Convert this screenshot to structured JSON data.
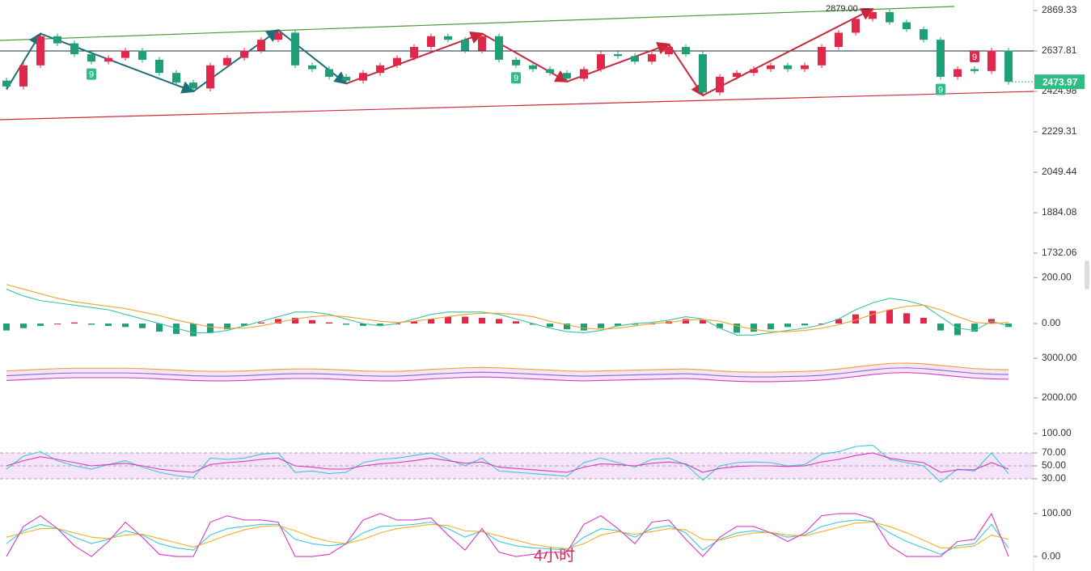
{
  "chart_data": [
    {
      "type": "candlestick",
      "scale": "log",
      "ylim": [
        1669,
        2933
      ],
      "yticks": [
        2869.33,
        2637.81,
        2424.98,
        2229.31,
        2049.44,
        1884.08,
        1732.06
      ],
      "open": [
        2480,
        2450,
        2560,
        2720,
        2680,
        2620,
        2580,
        2600,
        2640,
        2590,
        2520,
        2470,
        2440,
        2560,
        2600,
        2640,
        2700,
        2740,
        2560,
        2540,
        2500,
        2480,
        2520,
        2560,
        2600,
        2660,
        2720,
        2700,
        2640,
        2720,
        2590,
        2560,
        2540,
        2520,
        2490,
        2540,
        2620,
        2610,
        2580,
        2620,
        2660,
        2620,
        2420,
        2500,
        2520,
        2540,
        2560,
        2540,
        2560,
        2660,
        2740,
        2820,
        2860,
        2800,
        2760,
        2700,
        2500,
        2540,
        2530,
        2640
      ],
      "high": [
        2495,
        2575,
        2735,
        2735,
        2695,
        2635,
        2615,
        2655,
        2655,
        2605,
        2535,
        2485,
        2575,
        2615,
        2655,
        2715,
        2755,
        2755,
        2575,
        2555,
        2515,
        2535,
        2575,
        2615,
        2675,
        2735,
        2735,
        2715,
        2735,
        2735,
        2605,
        2575,
        2555,
        2535,
        2555,
        2635,
        2635,
        2625,
        2635,
        2675,
        2675,
        2635,
        2515,
        2535,
        2555,
        2575,
        2575,
        2575,
        2675,
        2755,
        2835,
        2879,
        2875,
        2815,
        2775,
        2715,
        2555,
        2555,
        2655,
        2655
      ],
      "low": [
        2435,
        2435,
        2545,
        2665,
        2605,
        2565,
        2565,
        2585,
        2575,
        2505,
        2455,
        2425,
        2425,
        2545,
        2585,
        2625,
        2685,
        2545,
        2525,
        2485,
        2465,
        2465,
        2505,
        2545,
        2585,
        2645,
        2685,
        2625,
        2625,
        2575,
        2545,
        2525,
        2505,
        2475,
        2475,
        2525,
        2595,
        2565,
        2565,
        2605,
        2605,
        2405,
        2405,
        2485,
        2505,
        2525,
        2525,
        2525,
        2545,
        2645,
        2725,
        2805,
        2785,
        2745,
        2685,
        2485,
        2485,
        2515,
        2515,
        2459
      ],
      "close": [
        2450,
        2560,
        2720,
        2680,
        2620,
        2580,
        2600,
        2640,
        2590,
        2520,
        2470,
        2440,
        2560,
        2600,
        2640,
        2700,
        2740,
        2560,
        2540,
        2500,
        2480,
        2520,
        2560,
        2600,
        2660,
        2720,
        2700,
        2640,
        2720,
        2590,
        2560,
        2540,
        2520,
        2490,
        2540,
        2620,
        2610,
        2580,
        2620,
        2660,
        2620,
        2420,
        2500,
        2520,
        2540,
        2560,
        2540,
        2560,
        2660,
        2740,
        2820,
        2860,
        2800,
        2760,
        2700,
        2500,
        2540,
        2530,
        2640,
        2473.97
      ],
      "up_color": "#e0294a",
      "down_color": "#1f9e78",
      "level_line": 2637.81,
      "high_label": "2879.00",
      "td_labels": [
        "9",
        "9",
        "9",
        "9"
      ],
      "period_label": "4小时"
    },
    {
      "type": "macd",
      "ylim": [
        -100,
        250
      ],
      "yticks": [
        {
          "value": 200,
          "label": "200.00"
        },
        {
          "value": 0,
          "label": "0.00"
        }
      ],
      "up_color": "#e0294a",
      "down_color": "#1f9e78",
      "histogram": [
        -30,
        -20,
        -10,
        0,
        5,
        -5,
        -10,
        -15,
        -20,
        -35,
        -45,
        -55,
        -40,
        -25,
        -10,
        5,
        20,
        25,
        15,
        5,
        -5,
        -10,
        -8,
        0,
        10,
        20,
        30,
        30,
        25,
        20,
        10,
        -5,
        -15,
        -25,
        -30,
        -20,
        -10,
        -5,
        0,
        10,
        20,
        15,
        -20,
        -40,
        -35,
        -25,
        -15,
        -8,
        0,
        20,
        40,
        55,
        60,
        45,
        25,
        -30,
        -50,
        -35,
        20,
        -15
      ],
      "series": [
        {
          "color": "#3cc39a",
          "values": [
            150,
            120,
            100,
            90,
            80,
            70,
            60,
            40,
            20,
            0,
            -20,
            -40,
            -40,
            -30,
            -10,
            10,
            30,
            50,
            50,
            40,
            20,
            0,
            -10,
            0,
            20,
            40,
            50,
            50,
            50,
            40,
            20,
            0,
            -20,
            -35,
            -40,
            -30,
            -10,
            0,
            5,
            15,
            30,
            20,
            -20,
            -50,
            -50,
            -40,
            -30,
            -20,
            -5,
            20,
            60,
            90,
            110,
            100,
            80,
            30,
            -20,
            -30,
            10,
            -10
          ]
        },
        {
          "color": "#f0a030",
          "values": [
            170,
            150,
            130,
            110,
            95,
            85,
            75,
            65,
            50,
            35,
            15,
            0,
            -15,
            -20,
            -20,
            -10,
            5,
            20,
            30,
            35,
            30,
            20,
            10,
            5,
            10,
            20,
            30,
            40,
            45,
            45,
            40,
            30,
            10,
            -5,
            -20,
            -25,
            -20,
            -10,
            0,
            5,
            15,
            18,
            10,
            -10,
            -25,
            -35,
            -35,
            -30,
            -20,
            -5,
            15,
            40,
            60,
            75,
            80,
            60,
            30,
            5,
            0,
            5
          ]
        }
      ]
    },
    {
      "type": "bands",
      "ylim": [
        1900,
        3200
      ],
      "yticks": [
        {
          "value": 3000,
          "label": "3000.00"
        },
        {
          "value": 2000,
          "label": "2000.00"
        }
      ],
      "fill": "#f3dcf7",
      "series": [
        {
          "color": "#f0a030",
          "values": [
            2680,
            2700,
            2720,
            2740,
            2750,
            2750,
            2750,
            2750,
            2740,
            2720,
            2700,
            2680,
            2670,
            2670,
            2680,
            2700,
            2720,
            2730,
            2730,
            2720,
            2700,
            2680,
            2670,
            2670,
            2690,
            2720,
            2740,
            2760,
            2770,
            2760,
            2740,
            2720,
            2700,
            2680,
            2670,
            2680,
            2690,
            2700,
            2710,
            2720,
            2730,
            2710,
            2680,
            2660,
            2650,
            2650,
            2660,
            2670,
            2690,
            2730,
            2780,
            2830,
            2870,
            2880,
            2860,
            2820,
            2780,
            2740,
            2720,
            2710
          ]
        },
        {
          "color": "#8a6cc8",
          "values": [
            2560,
            2580,
            2600,
            2620,
            2630,
            2630,
            2630,
            2630,
            2620,
            2600,
            2580,
            2560,
            2550,
            2550,
            2560,
            2580,
            2600,
            2610,
            2610,
            2600,
            2580,
            2560,
            2550,
            2550,
            2570,
            2600,
            2620,
            2640,
            2650,
            2640,
            2620,
            2600,
            2580,
            2560,
            2550,
            2560,
            2570,
            2580,
            2590,
            2600,
            2610,
            2590,
            2560,
            2540,
            2530,
            2530,
            2540,
            2550,
            2570,
            2610,
            2660,
            2710,
            2750,
            2760,
            2740,
            2700,
            2660,
            2620,
            2600,
            2590
          ]
        },
        {
          "color": "#d63cc0",
          "values": [
            2440,
            2460,
            2480,
            2500,
            2510,
            2510,
            2510,
            2510,
            2500,
            2480,
            2460,
            2440,
            2430,
            2430,
            2440,
            2460,
            2480,
            2490,
            2490,
            2480,
            2460,
            2440,
            2430,
            2430,
            2450,
            2480,
            2500,
            2520,
            2530,
            2520,
            2500,
            2480,
            2460,
            2440,
            2430,
            2440,
            2450,
            2460,
            2470,
            2480,
            2490,
            2470,
            2440,
            2420,
            2410,
            2410,
            2420,
            2430,
            2450,
            2490,
            2540,
            2590,
            2630,
            2640,
            2620,
            2580,
            2540,
            2500,
            2480,
            2470
          ]
        }
      ]
    },
    {
      "type": "line",
      "ylim": [
        0,
        100
      ],
      "band_fill": "#f3dcf7",
      "yticks": [
        {
          "value": 100,
          "label": "100.00"
        },
        {
          "value": 70,
          "label": "70.00"
        },
        {
          "value": 50,
          "label": "50.00"
        },
        {
          "value": 30,
          "label": "30.00"
        }
      ],
      "series": [
        {
          "color": "#3cc8d8",
          "values": [
            45,
            65,
            72,
            58,
            50,
            45,
            52,
            58,
            48,
            40,
            35,
            32,
            62,
            60,
            62,
            68,
            70,
            40,
            42,
            38,
            40,
            55,
            60,
            62,
            66,
            70,
            60,
            50,
            62,
            42,
            40,
            38,
            36,
            34,
            55,
            62,
            55,
            48,
            60,
            62,
            52,
            28,
            50,
            55,
            56,
            55,
            50,
            52,
            68,
            72,
            80,
            82,
            60,
            55,
            50,
            25,
            45,
            42,
            70,
            38
          ]
        },
        {
          "color": "#d63cc0",
          "values": [
            50,
            58,
            64,
            60,
            55,
            50,
            52,
            54,
            50,
            45,
            42,
            40,
            52,
            55,
            57,
            60,
            62,
            50,
            48,
            45,
            45,
            50,
            53,
            55,
            58,
            62,
            58,
            54,
            56,
            48,
            46,
            44,
            42,
            40,
            48,
            53,
            52,
            50,
            54,
            56,
            53,
            40,
            46,
            49,
            50,
            50,
            49,
            50,
            56,
            60,
            66,
            70,
            62,
            58,
            55,
            40,
            44,
            44,
            55,
            45
          ]
        }
      ]
    },
    {
      "type": "line",
      "ylim": [
        -30,
        120
      ],
      "yticks": [
        {
          "value": 100,
          "label": "100.00"
        },
        {
          "value": 0,
          "label": "0.00"
        }
      ],
      "series": [
        {
          "color": "#3cc8d8",
          "values": [
            30,
            60,
            75,
            65,
            45,
            30,
            40,
            60,
            50,
            30,
            20,
            15,
            50,
            65,
            70,
            75,
            75,
            40,
            30,
            25,
            30,
            55,
            70,
            72,
            75,
            80,
            65,
            45,
            60,
            35,
            25,
            20,
            18,
            15,
            45,
            65,
            60,
            45,
            65,
            72,
            55,
            15,
            40,
            55,
            60,
            55,
            45,
            50,
            70,
            80,
            85,
            82,
            55,
            35,
            20,
            5,
            25,
            30,
            75,
            20
          ]
        },
        {
          "color": "#f0b020",
          "values": [
            45,
            55,
            65,
            65,
            55,
            45,
            42,
            50,
            52,
            42,
            32,
            22,
            35,
            50,
            62,
            70,
            72,
            60,
            45,
            35,
            30,
            40,
            55,
            65,
            70,
            75,
            72,
            60,
            58,
            48,
            38,
            28,
            22,
            18,
            30,
            50,
            58,
            52,
            58,
            65,
            62,
            40,
            38,
            48,
            55,
            56,
            50,
            48,
            58,
            68,
            78,
            80,
            70,
            55,
            38,
            20,
            20,
            25,
            50,
            40
          ]
        },
        {
          "color": "#d63cc0",
          "values": [
            0,
            70,
            95,
            65,
            25,
            0,
            35,
            80,
            45,
            5,
            0,
            0,
            80,
            95,
            85,
            85,
            80,
            0,
            0,
            5,
            30,
            85,
            100,
            85,
            85,
            90,
            50,
            15,
            65,
            10,
            0,
            5,
            10,
            10,
            75,
            95,
            65,
            30,
            80,
            85,
            40,
            0,
            45,
            70,
            70,
            55,
            35,
            55,
            95,
            100,
            100,
            88,
            25,
            0,
            0,
            0,
            35,
            40,
            100,
            0
          ]
        }
      ]
    }
  ]
}
